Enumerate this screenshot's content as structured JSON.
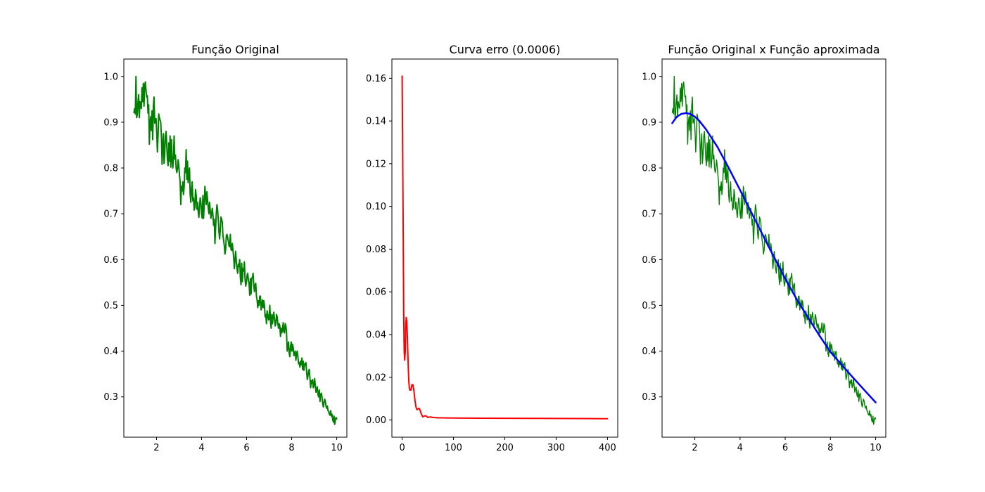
{
  "chart_data": [
    {
      "type": "line",
      "title": "Função Original",
      "xlabel": "",
      "ylabel": "",
      "xlim": [
        0.55,
        10.45
      ],
      "ylim": [
        0.212,
        1.038
      ],
      "xticks": [
        2,
        4,
        6,
        8,
        10
      ],
      "xtick_labels": [
        "2",
        "4",
        "6",
        "8",
        "10"
      ],
      "yticks": [
        0.3,
        0.4,
        0.5,
        0.6,
        0.7,
        0.8,
        0.9,
        1.0
      ],
      "ytick_labels": [
        "0.3",
        "0.4",
        "0.5",
        "0.6",
        "0.7",
        "0.8",
        "0.9",
        "1.0"
      ],
      "grid": false,
      "series": [
        {
          "color": "#008000",
          "line_width": 2,
          "x_start": 1,
          "x_end": 10,
          "values": [
            0.921,
            0.93,
            0.918,
            1.0,
            0.91,
            0.917,
            0.945,
            0.96,
            0.91,
            0.945,
            0.935,
            0.93,
            0.975,
            0.945,
            0.985,
            0.935,
            0.98,
            0.988,
            0.97,
            0.955,
            0.958,
            0.92,
            0.938,
            0.852,
            0.9,
            0.912,
            0.882,
            0.925,
            0.862,
            0.935,
            0.955,
            0.898,
            0.905,
            0.908,
            0.878,
            0.835,
            0.87,
            0.918,
            0.91,
            0.905,
            0.9,
            0.87,
            0.808,
            0.852,
            0.875,
            0.81,
            0.832,
            0.87,
            0.88,
            0.85,
            0.82,
            0.805,
            0.855,
            0.815,
            0.87,
            0.802,
            0.862,
            0.82,
            0.8,
            0.82,
            0.87,
            0.82,
            0.828,
            0.8,
            0.79,
            0.798,
            0.818,
            0.805,
            0.785,
            0.77,
            0.72,
            0.76,
            0.75,
            0.77,
            0.742,
            0.758,
            0.8,
            0.79,
            0.84,
            0.775,
            0.815,
            0.768,
            0.788,
            0.8,
            0.742,
            0.725,
            0.755,
            0.77,
            0.728,
            0.735,
            0.708,
            0.714,
            0.753,
            0.74,
            0.71,
            0.725,
            0.705,
            0.692,
            0.718,
            0.735,
            0.725,
            0.7,
            0.69,
            0.74,
            0.69,
            0.72,
            0.76,
            0.74,
            0.72,
            0.748,
            0.73,
            0.713,
            0.7,
            0.725,
            0.708,
            0.69,
            0.7,
            0.712,
            0.698,
            0.675,
            0.688,
            0.635,
            0.668,
            0.7,
            0.72,
            0.708,
            0.688,
            0.66,
            0.645,
            0.665,
            0.693,
            0.688,
            0.682,
            0.652,
            0.642,
            0.63,
            0.612,
            0.622,
            0.652,
            0.655,
            0.648,
            0.64,
            0.63,
            0.628,
            0.655,
            0.622,
            0.62,
            0.635,
            0.62,
            0.605,
            0.58,
            0.6,
            0.618,
            0.595,
            0.58,
            0.57,
            0.59,
            0.585,
            0.6,
            0.56,
            0.545,
            0.592,
            0.552,
            0.58,
            0.575,
            0.595,
            0.558,
            0.542,
            0.55,
            0.565,
            0.57,
            0.555,
            0.548,
            0.522,
            0.558,
            0.525,
            0.56,
            0.56,
            0.57,
            0.545,
            0.53,
            0.545,
            0.548,
            0.52,
            0.512,
            0.495,
            0.51,
            0.5,
            0.52,
            0.52,
            0.49,
            0.502,
            0.512,
            0.495,
            0.51,
            0.5,
            0.475,
            0.48,
            0.46,
            0.488,
            0.48,
            0.468,
            0.47,
            0.5,
            0.465,
            0.45,
            0.48,
            0.46,
            0.475,
            0.485,
            0.47,
            0.455,
            0.46,
            0.48,
            0.475,
            0.46,
            0.45,
            0.46,
            0.455,
            0.432,
            0.45,
            0.44,
            0.448,
            0.462,
            0.442,
            0.44,
            0.46,
            0.455,
            0.44,
            0.4,
            0.41,
            0.42,
            0.395,
            0.388,
            0.41,
            0.42,
            0.4,
            0.415,
            0.408,
            0.39,
            0.395,
            0.4,
            0.38,
            0.395,
            0.4,
            0.388,
            0.372,
            0.375,
            0.365,
            0.378,
            0.37,
            0.385,
            0.36,
            0.378,
            0.358,
            0.372,
            0.37,
            0.375,
            0.355,
            0.338,
            0.345,
            0.357,
            0.36,
            0.34,
            0.32,
            0.335,
            0.33,
            0.338,
            0.32,
            0.325,
            0.34,
            0.325,
            0.31,
            0.318,
            0.322,
            0.305,
            0.3,
            0.315,
            0.29,
            0.305,
            0.308,
            0.3,
            0.285,
            0.278,
            0.288,
            0.295,
            0.29,
            0.28,
            0.275,
            0.28,
            0.27,
            0.268,
            0.262,
            0.26,
            0.27,
            0.258,
            0.262,
            0.25,
            0.245,
            0.258,
            0.24,
            0.25,
            0.255,
            0.252
          ]
        }
      ]
    },
    {
      "type": "line",
      "title": "Curva erro (0.0006)",
      "xlabel": "",
      "ylabel": "",
      "xlim": [
        -20,
        420
      ],
      "ylim": [
        -0.00805,
        0.169
      ],
      "xticks": [
        0,
        100,
        200,
        300,
        400
      ],
      "xtick_labels": [
        "0",
        "100",
        "200",
        "300",
        "400"
      ],
      "yticks": [
        0.0,
        0.02,
        0.04,
        0.06,
        0.08,
        0.1,
        0.12,
        0.14,
        0.16
      ],
      "ytick_labels": [
        "0.00",
        "0.02",
        "0.04",
        "0.06",
        "0.08",
        "0.10",
        "0.12",
        "0.14",
        "0.16"
      ],
      "grid": false,
      "series": [
        {
          "color": "#ff0000",
          "line_width": 2,
          "x": [
            0,
            2,
            3,
            4,
            5,
            6,
            7,
            8,
            9,
            10,
            11,
            12,
            13,
            14,
            15,
            17,
            19,
            21,
            23,
            25,
            27,
            29,
            31,
            33,
            35,
            37,
            40,
            43,
            46,
            50,
            55,
            60,
            70,
            80,
            100,
            150,
            200,
            250,
            300,
            350,
            400
          ],
          "y": [
            0.161,
            0.09,
            0.05,
            0.032,
            0.028,
            0.032,
            0.044,
            0.048,
            0.046,
            0.04,
            0.032,
            0.024,
            0.018,
            0.015,
            0.014,
            0.014,
            0.0165,
            0.0165,
            0.0135,
            0.009,
            0.006,
            0.0048,
            0.0052,
            0.0055,
            0.0045,
            0.003,
            0.0015,
            0.0018,
            0.002,
            0.0012,
            0.0014,
            0.0012,
            0.001,
            0.001,
            0.0009,
            0.00085,
            0.0008,
            0.00075,
            0.0007,
            0.00065,
            0.0006
          ]
        }
      ]
    },
    {
      "type": "line",
      "title": "Função Original x Função aproximada",
      "xlabel": "",
      "ylabel": "",
      "xlim": [
        0.55,
        10.45
      ],
      "ylim": [
        0.212,
        1.038
      ],
      "xticks": [
        2,
        4,
        6,
        8,
        10
      ],
      "xtick_labels": [
        "2",
        "4",
        "6",
        "8",
        "10"
      ],
      "yticks": [
        0.3,
        0.4,
        0.5,
        0.6,
        0.7,
        0.8,
        0.9,
        1.0
      ],
      "ytick_labels": [
        "0.3",
        "0.4",
        "0.5",
        "0.6",
        "0.7",
        "0.8",
        "0.9",
        "1.0"
      ],
      "grid": false,
      "series": [
        {
          "color": "#008000",
          "line_width": 1.4,
          "x_start": 1,
          "x_end": 10,
          "values": [
            0.921,
            0.93,
            0.918,
            1.0,
            0.91,
            0.917,
            0.945,
            0.96,
            0.91,
            0.945,
            0.935,
            0.93,
            0.975,
            0.945,
            0.985,
            0.935,
            0.98,
            0.988,
            0.97,
            0.955,
            0.958,
            0.92,
            0.938,
            0.852,
            0.9,
            0.912,
            0.882,
            0.925,
            0.862,
            0.935,
            0.955,
            0.898,
            0.905,
            0.908,
            0.878,
            0.835,
            0.87,
            0.918,
            0.91,
            0.905,
            0.9,
            0.87,
            0.808,
            0.852,
            0.875,
            0.81,
            0.832,
            0.87,
            0.88,
            0.85,
            0.82,
            0.805,
            0.855,
            0.815,
            0.87,
            0.802,
            0.862,
            0.82,
            0.8,
            0.82,
            0.87,
            0.82,
            0.828,
            0.8,
            0.79,
            0.798,
            0.818,
            0.805,
            0.785,
            0.77,
            0.72,
            0.76,
            0.75,
            0.77,
            0.742,
            0.758,
            0.8,
            0.79,
            0.84,
            0.775,
            0.815,
            0.768,
            0.788,
            0.8,
            0.742,
            0.725,
            0.755,
            0.77,
            0.728,
            0.735,
            0.708,
            0.714,
            0.753,
            0.74,
            0.71,
            0.725,
            0.705,
            0.692,
            0.718,
            0.735,
            0.725,
            0.7,
            0.69,
            0.74,
            0.69,
            0.72,
            0.76,
            0.74,
            0.72,
            0.748,
            0.73,
            0.713,
            0.7,
            0.725,
            0.708,
            0.69,
            0.7,
            0.712,
            0.698,
            0.675,
            0.688,
            0.635,
            0.668,
            0.7,
            0.72,
            0.708,
            0.688,
            0.66,
            0.645,
            0.665,
            0.693,
            0.688,
            0.682,
            0.652,
            0.642,
            0.63,
            0.612,
            0.622,
            0.652,
            0.655,
            0.648,
            0.64,
            0.63,
            0.628,
            0.655,
            0.622,
            0.62,
            0.635,
            0.62,
            0.605,
            0.58,
            0.6,
            0.618,
            0.595,
            0.58,
            0.57,
            0.59,
            0.585,
            0.6,
            0.56,
            0.545,
            0.592,
            0.552,
            0.58,
            0.575,
            0.595,
            0.558,
            0.542,
            0.55,
            0.565,
            0.57,
            0.555,
            0.548,
            0.522,
            0.558,
            0.525,
            0.56,
            0.56,
            0.57,
            0.545,
            0.53,
            0.545,
            0.548,
            0.52,
            0.512,
            0.495,
            0.51,
            0.5,
            0.52,
            0.52,
            0.49,
            0.502,
            0.512,
            0.495,
            0.51,
            0.5,
            0.475,
            0.48,
            0.46,
            0.488,
            0.48,
            0.468,
            0.47,
            0.5,
            0.465,
            0.45,
            0.48,
            0.46,
            0.475,
            0.485,
            0.47,
            0.455,
            0.46,
            0.48,
            0.475,
            0.46,
            0.45,
            0.46,
            0.455,
            0.432,
            0.45,
            0.44,
            0.448,
            0.462,
            0.442,
            0.44,
            0.46,
            0.455,
            0.44,
            0.4,
            0.41,
            0.42,
            0.395,
            0.388,
            0.41,
            0.42,
            0.4,
            0.415,
            0.408,
            0.39,
            0.395,
            0.4,
            0.38,
            0.395,
            0.4,
            0.388,
            0.372,
            0.375,
            0.365,
            0.378,
            0.37,
            0.385,
            0.36,
            0.378,
            0.358,
            0.372,
            0.37,
            0.375,
            0.355,
            0.338,
            0.345,
            0.357,
            0.36,
            0.34,
            0.32,
            0.335,
            0.33,
            0.338,
            0.32,
            0.325,
            0.34,
            0.325,
            0.31,
            0.318,
            0.322,
            0.305,
            0.3,
            0.315,
            0.29,
            0.305,
            0.308,
            0.3,
            0.285,
            0.278,
            0.288,
            0.295,
            0.29,
            0.28,
            0.275,
            0.28,
            0.27,
            0.268,
            0.262,
            0.26,
            0.27,
            0.258,
            0.262,
            0.25,
            0.245,
            0.258,
            0.24,
            0.25,
            0.255,
            0.252
          ]
        },
        {
          "color": "#0000ff",
          "line_width": 2.5,
          "x": [
            1.0,
            1.2,
            1.4,
            1.6,
            1.8,
            2.0,
            2.2,
            2.5,
            3.0,
            3.5,
            4.0,
            4.5,
            5.0,
            5.5,
            6.0,
            6.5,
            7.0,
            7.5,
            8.0,
            8.5,
            9.0,
            9.5,
            10.0
          ],
          "y": [
            0.898,
            0.912,
            0.918,
            0.92,
            0.918,
            0.912,
            0.903,
            0.884,
            0.846,
            0.8,
            0.752,
            0.703,
            0.654,
            0.606,
            0.558,
            0.514,
            0.474,
            0.435,
            0.398,
            0.37,
            0.342,
            0.315,
            0.288
          ]
        }
      ]
    }
  ]
}
